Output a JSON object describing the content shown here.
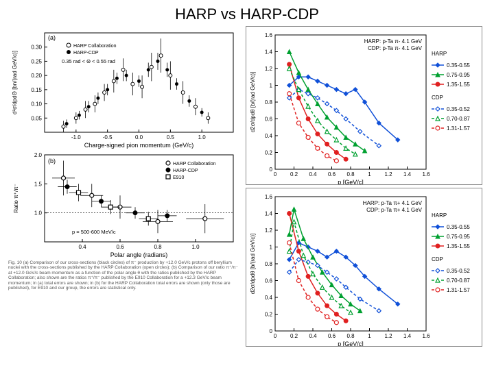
{
  "title": "HARP vs HARP-CDP",
  "left": {
    "panelA": {
      "label": "(a)",
      "ylabel": "d²σ/dpdΘ [bn/(rad GeV/c)]",
      "xlabel": "Charge-signed pion momentum (GeV/c)",
      "xlim": [
        -1.5,
        1.5
      ],
      "xticks": [
        -1.0,
        -0.5,
        0.0,
        0.5,
        1.0
      ],
      "ylim": [
        0,
        0.35
      ],
      "yticks": [
        0.05,
        0.1,
        0.15,
        0.2,
        0.25,
        0.3
      ],
      "legend": [
        "HARP Collaboration",
        "HARP-CDP"
      ],
      "angle_label": "0.35 rad < Θ < 0.55 rad",
      "points_open": [
        {
          "x": -1.2,
          "y": 0.02,
          "e": 0.02
        },
        {
          "x": -1.0,
          "y": 0.05,
          "e": 0.02
        },
        {
          "x": -0.85,
          "y": 0.08,
          "e": 0.03
        },
        {
          "x": -0.7,
          "y": 0.1,
          "e": 0.03
        },
        {
          "x": -0.55,
          "y": 0.14,
          "e": 0.03
        },
        {
          "x": -0.4,
          "y": 0.18,
          "e": 0.04
        },
        {
          "x": -0.25,
          "y": 0.22,
          "e": 0.04
        },
        {
          "x": -0.1,
          "y": 0.17,
          "e": 0.04
        },
        {
          "x": 0.05,
          "y": 0.16,
          "e": 0.04
        },
        {
          "x": 0.2,
          "y": 0.23,
          "e": 0.05
        },
        {
          "x": 0.35,
          "y": 0.27,
          "e": 0.06
        },
        {
          "x": 0.5,
          "y": 0.2,
          "e": 0.05
        },
        {
          "x": 0.7,
          "y": 0.14,
          "e": 0.04
        },
        {
          "x": 0.9,
          "y": 0.09,
          "e": 0.03
        },
        {
          "x": 1.1,
          "y": 0.05,
          "e": 0.02
        }
      ],
      "points_filled": [
        {
          "x": -1.15,
          "y": 0.03,
          "e": 0.015
        },
        {
          "x": -0.95,
          "y": 0.06,
          "e": 0.015
        },
        {
          "x": -0.8,
          "y": 0.09,
          "e": 0.02
        },
        {
          "x": -0.65,
          "y": 0.12,
          "e": 0.02
        },
        {
          "x": -0.5,
          "y": 0.15,
          "e": 0.02
        },
        {
          "x": -0.35,
          "y": 0.19,
          "e": 0.02
        },
        {
          "x": -0.2,
          "y": 0.2,
          "e": 0.02
        },
        {
          "x": 0.0,
          "y": 0.18,
          "e": 0.02
        },
        {
          "x": 0.15,
          "y": 0.22,
          "e": 0.025
        },
        {
          "x": 0.3,
          "y": 0.25,
          "e": 0.03
        },
        {
          "x": 0.45,
          "y": 0.22,
          "e": 0.025
        },
        {
          "x": 0.6,
          "y": 0.17,
          "e": 0.02
        },
        {
          "x": 0.8,
          "y": 0.11,
          "e": 0.02
        },
        {
          "x": 1.0,
          "y": 0.07,
          "e": 0.015
        }
      ]
    },
    "panelB": {
      "label": "(b)",
      "ylabel": "Ratio π⁺/π⁻",
      "xlabel": "Polar angle (radians)",
      "xlim": [
        0.2,
        1.2
      ],
      "xticks": [
        0.4,
        0.6,
        0.8,
        1.0
      ],
      "ylim": [
        0.5,
        2.0
      ],
      "yticks": [
        1.0,
        1.5,
        2.0
      ],
      "legend": [
        "HARP Collaboration",
        "HARP-CDP",
        "E910"
      ],
      "p_label": "p = 500-600 MeV/c",
      "points_open": [
        {
          "x": 0.3,
          "y": 1.6,
          "e": 0.3,
          "ex": 0.06
        },
        {
          "x": 0.45,
          "y": 1.3,
          "e": 0.2,
          "ex": 0.06
        },
        {
          "x": 0.6,
          "y": 1.1,
          "e": 0.2,
          "ex": 0.06
        },
        {
          "x": 0.8,
          "y": 0.85,
          "e": 0.2,
          "ex": 0.08
        },
        {
          "x": 1.05,
          "y": 0.9,
          "e": 0.25,
          "ex": 0.1
        }
      ],
      "points_filled": [
        {
          "x": 0.32,
          "y": 1.45,
          "e": 0.12,
          "ex": 0.05
        },
        {
          "x": 0.5,
          "y": 1.2,
          "e": 0.1,
          "ex": 0.05
        },
        {
          "x": 0.68,
          "y": 1.0,
          "e": 0.1,
          "ex": 0.05
        },
        {
          "x": 0.85,
          "y": 0.95,
          "e": 0.1,
          "ex": 0.05
        }
      ],
      "points_square": [
        {
          "x": 0.38,
          "y": 1.35,
          "e": 0.15,
          "ex": 0.05
        },
        {
          "x": 0.55,
          "y": 1.1,
          "e": 0.12,
          "ex": 0.05
        },
        {
          "x": 0.75,
          "y": 0.9,
          "e": 0.12,
          "ex": 0.05
        }
      ]
    },
    "caption": "Fig. 10  (a) Comparison of our cross-sections (black circles) of π⁻ production by +12.0 GeV/c protons off beryllium nuclei with the cross-sections published by the HARP Collaboration (open circles); (b) Comparison of our ratio π⁺/π⁻ at +12.0 GeV/c beam momentum as a function of the polar angle θ with the ratios published by the HARP Collaboration; also shown are the ratios π⁺/π⁻ published by the E910 Collaboration for a +12.3 GeV/c beam momentum; in (a) total errors are shown; in (b) for the HARP Collaboration total errors are shown (only those are published), for E910 and our group, the errors are statistical only."
  },
  "right": {
    "top": {
      "header1": "HARP:  p-Ta  π-   4.1 GeV",
      "header2": "CDP:   p-Ta  π-   4.1 GeV",
      "ylabel": "d2σ/dpdθ  [b/(rad GeV/c)]",
      "xlabel": "p [GeV/c]",
      "xlim": [
        0,
        1.6
      ],
      "xticks": [
        0,
        0.2,
        0.4,
        0.6,
        0.8,
        1.0,
        1.2,
        1.4,
        1.6
      ],
      "ylim": [
        0,
        1.6
      ],
      "yticks": [
        0,
        0.2,
        0.4,
        0.6,
        0.8,
        1.0,
        1.2,
        1.4,
        1.6
      ],
      "legend_harp": "HARP",
      "legend_cdp": "CDP",
      "series": [
        {
          "name": "0.35-0.55",
          "color": "#1050d8",
          "marker": "diamond",
          "dash": "solid",
          "data": [
            [
              0.15,
              1.0
            ],
            [
              0.25,
              1.1
            ],
            [
              0.35,
              1.1
            ],
            [
              0.45,
              1.05
            ],
            [
              0.55,
              1.0
            ],
            [
              0.65,
              0.95
            ],
            [
              0.75,
              0.9
            ],
            [
              0.85,
              0.95
            ],
            [
              0.95,
              0.8
            ],
            [
              1.1,
              0.55
            ],
            [
              1.3,
              0.35
            ]
          ]
        },
        {
          "name": "0.75-0.95",
          "color": "#00a030",
          "marker": "triangle",
          "dash": "solid",
          "data": [
            [
              0.15,
              1.4
            ],
            [
              0.25,
              1.15
            ],
            [
              0.35,
              0.95
            ],
            [
              0.45,
              0.78
            ],
            [
              0.55,
              0.62
            ],
            [
              0.65,
              0.5
            ],
            [
              0.75,
              0.38
            ],
            [
              0.85,
              0.3
            ],
            [
              0.95,
              0.22
            ]
          ]
        },
        {
          "name": "1.35-1.55",
          "color": "#e02020",
          "marker": "circle",
          "dash": "solid",
          "data": [
            [
              0.15,
              1.25
            ],
            [
              0.25,
              0.85
            ],
            [
              0.35,
              0.6
            ],
            [
              0.45,
              0.42
            ],
            [
              0.55,
              0.3
            ],
            [
              0.65,
              0.2
            ],
            [
              0.75,
              0.12
            ]
          ]
        },
        {
          "name": "0.35-0.52",
          "color": "#1050d8",
          "marker": "diamond-open",
          "dash": "dash",
          "data": [
            [
              0.15,
              0.85
            ],
            [
              0.25,
              0.95
            ],
            [
              0.35,
              0.9
            ],
            [
              0.45,
              0.85
            ],
            [
              0.55,
              0.78
            ],
            [
              0.65,
              0.7
            ],
            [
              0.75,
              0.6
            ],
            [
              0.9,
              0.45
            ],
            [
              1.1,
              0.28
            ]
          ]
        },
        {
          "name": "0.70-0.87",
          "color": "#00a030",
          "marker": "triangle-open",
          "dash": "dash",
          "data": [
            [
              0.15,
              1.2
            ],
            [
              0.25,
              0.95
            ],
            [
              0.35,
              0.75
            ],
            [
              0.45,
              0.58
            ],
            [
              0.55,
              0.45
            ],
            [
              0.65,
              0.35
            ],
            [
              0.75,
              0.25
            ],
            [
              0.85,
              0.18
            ]
          ]
        },
        {
          "name": "1.31-1.57",
          "color": "#e02020",
          "marker": "circle-open",
          "dash": "dash",
          "data": [
            [
              0.15,
              0.9
            ],
            [
              0.25,
              0.55
            ],
            [
              0.35,
              0.38
            ],
            [
              0.45,
              0.25
            ],
            [
              0.55,
              0.16
            ],
            [
              0.65,
              0.1
            ]
          ]
        }
      ]
    },
    "bottom": {
      "header1": "HARP:  p-Ta  π+   4.1 GeV",
      "header2": "CDP:   p-Ta  π+   4.1 GeV",
      "ylabel": "d2σ/dpdθ  [b/(rad GeV/c)]",
      "xlabel": "p [GeV/c]",
      "xlim": [
        0,
        1.6
      ],
      "xticks": [
        0,
        0.2,
        0.4,
        0.6,
        0.8,
        1.0,
        1.2,
        1.4,
        1.6
      ],
      "ylim": [
        0,
        1.6
      ],
      "yticks": [
        0,
        0.2,
        0.4,
        0.6,
        0.8,
        1.0,
        1.2,
        1.4,
        1.6
      ],
      "series": [
        {
          "name": "0.35-0.55",
          "color": "#1050d8",
          "marker": "diamond",
          "dash": "solid",
          "data": [
            [
              0.15,
              0.85
            ],
            [
              0.25,
              1.05
            ],
            [
              0.35,
              1.0
            ],
            [
              0.45,
              0.95
            ],
            [
              0.55,
              0.88
            ],
            [
              0.65,
              0.95
            ],
            [
              0.75,
              0.88
            ],
            [
              0.85,
              0.78
            ],
            [
              0.95,
              0.65
            ],
            [
              1.1,
              0.5
            ],
            [
              1.3,
              0.32
            ]
          ]
        },
        {
          "name": "0.75-0.95",
          "color": "#00a030",
          "marker": "triangle",
          "dash": "solid",
          "data": [
            [
              0.15,
              1.15
            ],
            [
              0.2,
              1.45
            ],
            [
              0.3,
              1.1
            ],
            [
              0.4,
              0.88
            ],
            [
              0.5,
              0.7
            ],
            [
              0.6,
              0.55
            ],
            [
              0.7,
              0.42
            ],
            [
              0.8,
              0.32
            ],
            [
              0.9,
              0.24
            ]
          ]
        },
        {
          "name": "1.35-1.55",
          "color": "#e02020",
          "marker": "circle",
          "dash": "solid",
          "data": [
            [
              0.15,
              1.4
            ],
            [
              0.25,
              0.95
            ],
            [
              0.35,
              0.65
            ],
            [
              0.45,
              0.45
            ],
            [
              0.55,
              0.3
            ],
            [
              0.65,
              0.2
            ],
            [
              0.75,
              0.12
            ]
          ]
        },
        {
          "name": "0.35-0.52",
          "color": "#1050d8",
          "marker": "diamond-open",
          "dash": "dash",
          "data": [
            [
              0.15,
              0.7
            ],
            [
              0.25,
              0.85
            ],
            [
              0.35,
              0.82
            ],
            [
              0.45,
              0.78
            ],
            [
              0.55,
              0.7
            ],
            [
              0.65,
              0.62
            ],
            [
              0.75,
              0.52
            ],
            [
              0.9,
              0.38
            ],
            [
              1.1,
              0.24
            ]
          ]
        },
        {
          "name": "0.70-0.87",
          "color": "#00a030",
          "marker": "triangle-open",
          "dash": "dash",
          "data": [
            [
              0.15,
              0.95
            ],
            [
              0.2,
              1.3
            ],
            [
              0.3,
              0.9
            ],
            [
              0.4,
              0.68
            ],
            [
              0.5,
              0.52
            ],
            [
              0.6,
              0.4
            ],
            [
              0.7,
              0.3
            ],
            [
              0.8,
              0.22
            ]
          ]
        },
        {
          "name": "1.31-1.57",
          "color": "#e02020",
          "marker": "circle-open",
          "dash": "dash",
          "data": [
            [
              0.15,
              1.05
            ],
            [
              0.25,
              0.6
            ],
            [
              0.35,
              0.4
            ],
            [
              0.45,
              0.26
            ],
            [
              0.55,
              0.17
            ],
            [
              0.65,
              0.1
            ]
          ]
        }
      ]
    }
  }
}
